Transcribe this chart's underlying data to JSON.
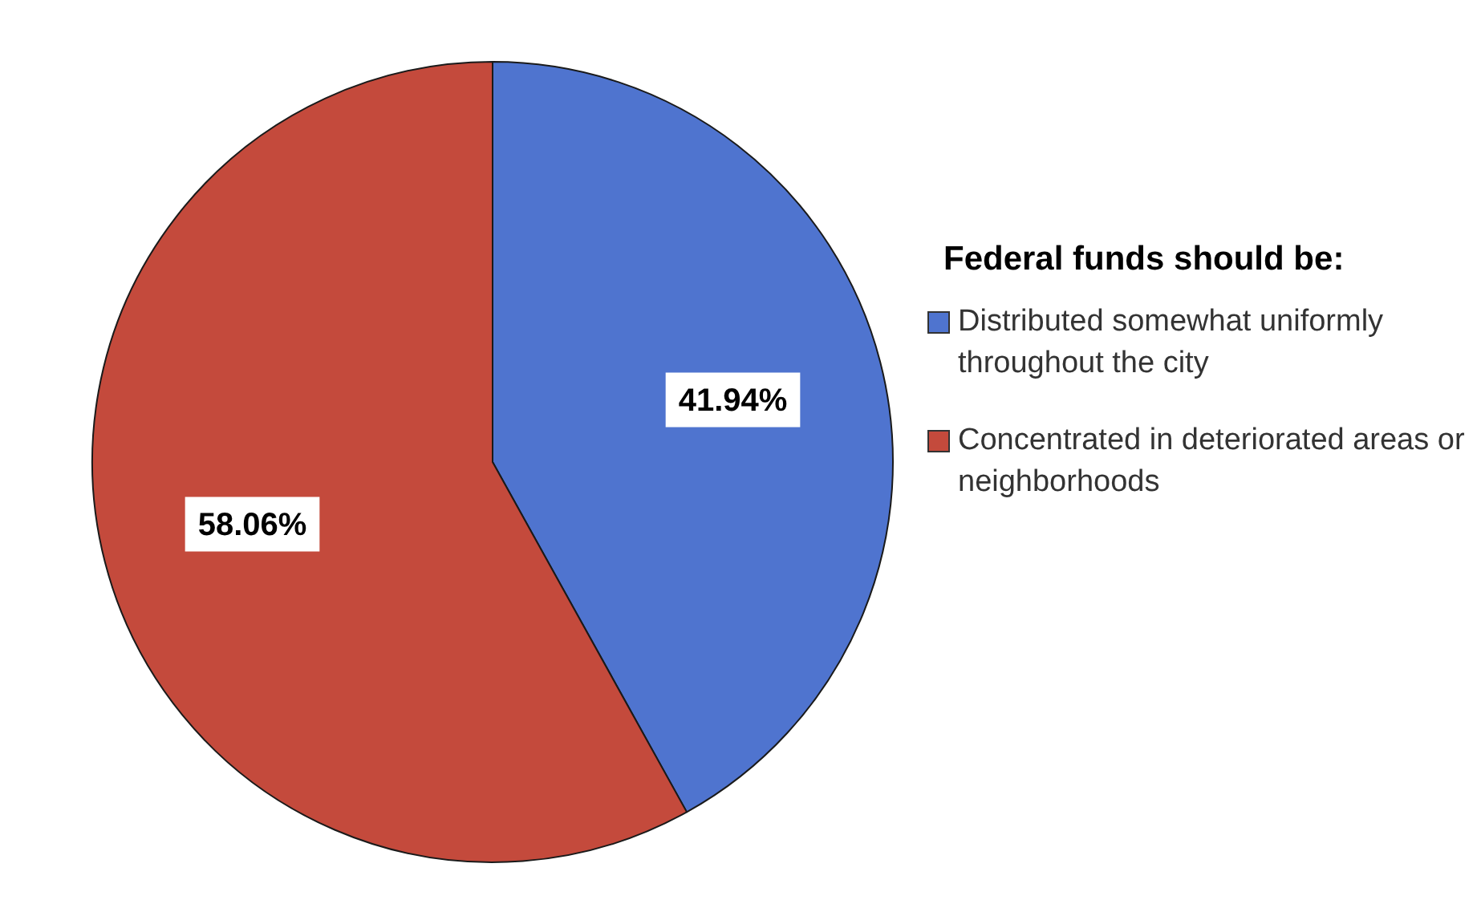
{
  "chart_data": {
    "type": "pie",
    "legend_title": "Federal funds should be:",
    "categories": [
      "Distributed somewhat uniformly throughout the city",
      "Concentrated in deteriorated areas or neighborhoods"
    ],
    "values": [
      41.94,
      58.06
    ],
    "value_labels": [
      "41.94%",
      "58.06%"
    ],
    "colors": [
      "#4f74cf",
      "#c44a3c"
    ],
    "legend": "right"
  }
}
